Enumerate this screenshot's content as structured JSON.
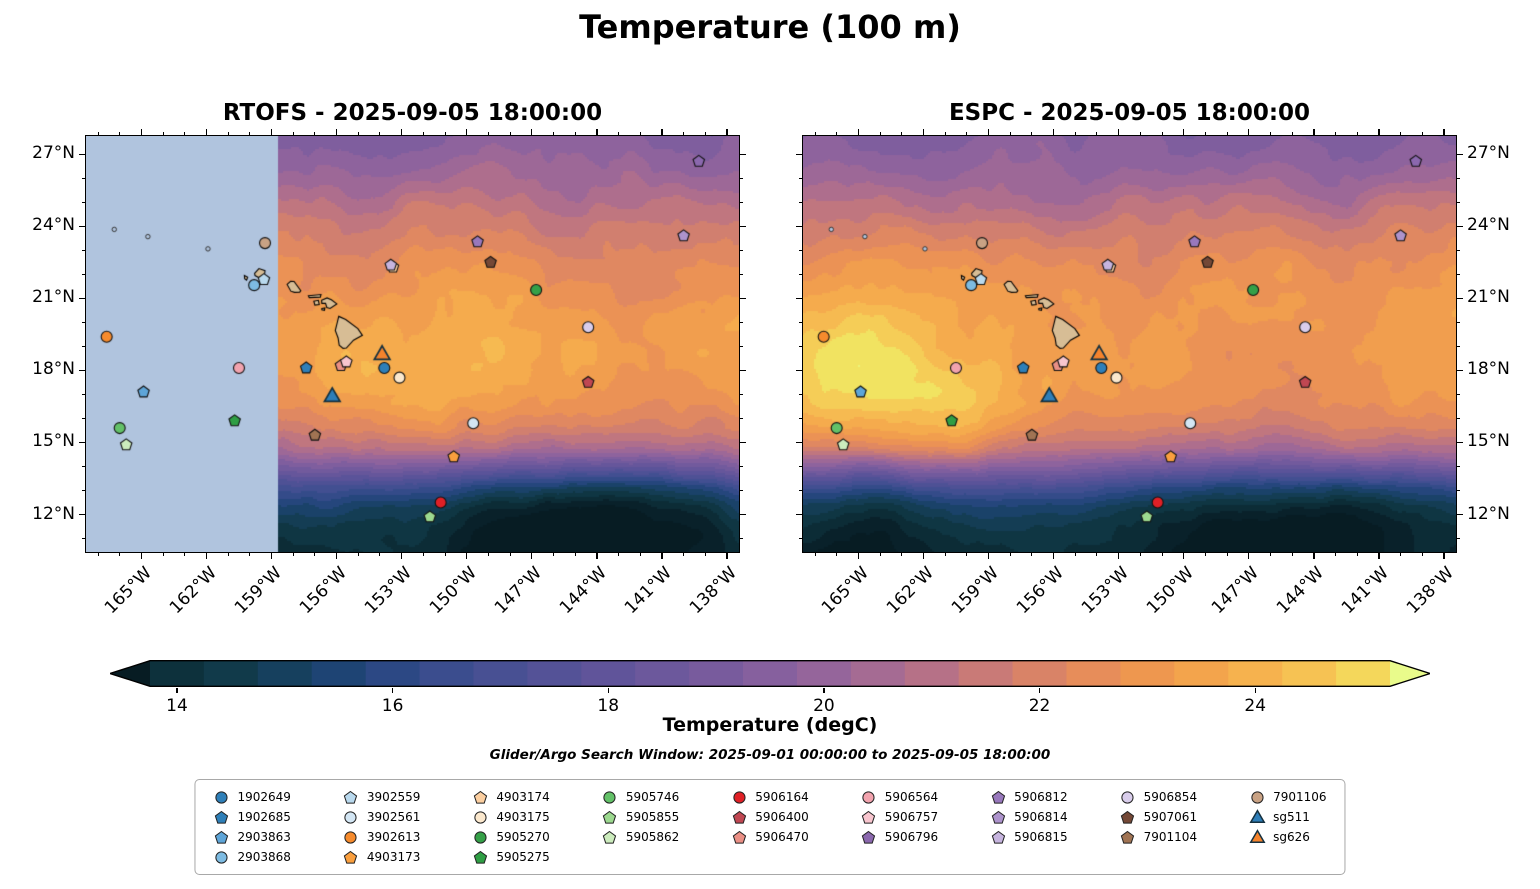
{
  "title": "Temperature (100 m)",
  "panels": [
    {
      "model": "RTOFS",
      "title": "RTOFS - 2025-09-05 18:00:00"
    },
    {
      "model": "ESPC",
      "title": "ESPC - 2025-09-05 18:00:00"
    }
  ],
  "colorbar": {
    "label": "Temperature (degC)",
    "tick_values": [
      14,
      16,
      18,
      20,
      22,
      24
    ],
    "tick_labels": [
      "14",
      "16",
      "18",
      "20",
      "22",
      "24"
    ],
    "vmin": 13.75,
    "vmax": 25.25
  },
  "search_window_note": "Glider/Argo Search Window: 2025-09-01 00:00:00 to 2025-09-05 18:00:00",
  "chart_data": {
    "type": "heatmap",
    "subtype": "filled-contour-geographic-temperature-field",
    "variable": "Temperature (degC) at 100 m",
    "valid_time": "2025-09-05 18:00:00",
    "models": [
      "RTOFS",
      "ESPC"
    ],
    "level_step": 0.5,
    "geo": {
      "lon_min": -167.6,
      "lon_max": -137.4,
      "lat_min": 10.4,
      "lat_max": 27.8,
      "x_tick_values": [
        -165,
        -162,
        -159,
        -156,
        -153,
        -150,
        -147,
        -144,
        -141,
        -138
      ],
      "x_tick_labels": [
        "165°W",
        "162°W",
        "159°W",
        "156°W",
        "153°W",
        "150°W",
        "147°W",
        "144°W",
        "141°W",
        "138°W"
      ],
      "y_tick_values": [
        12,
        15,
        18,
        21,
        24,
        27
      ],
      "y_tick_labels": [
        "12°N",
        "15°N",
        "18°N",
        "21°N",
        "24°N",
        "27°N"
      ]
    },
    "colormap_stops": [
      [
        13.0,
        "#071c23"
      ],
      [
        13.5,
        "#0a2630"
      ],
      [
        14.0,
        "#0d313c"
      ],
      [
        14.5,
        "#113a4a"
      ],
      [
        15.0,
        "#16405e"
      ],
      [
        15.5,
        "#1e4474"
      ],
      [
        16.0,
        "#2c4884"
      ],
      [
        16.5,
        "#3b4d8e"
      ],
      [
        17.0,
        "#485093"
      ],
      [
        17.5,
        "#545297"
      ],
      [
        18.0,
        "#60549a"
      ],
      [
        18.5,
        "#6c589c"
      ],
      [
        19.0,
        "#785b9d"
      ],
      [
        19.5,
        "#86609e"
      ],
      [
        20.0,
        "#95659b"
      ],
      [
        20.5,
        "#a56b93"
      ],
      [
        21.0,
        "#b67187"
      ],
      [
        21.5,
        "#c97a77"
      ],
      [
        22.0,
        "#d98367"
      ],
      [
        22.5,
        "#e78d5a"
      ],
      [
        23.0,
        "#ee974f"
      ],
      [
        23.5,
        "#f3a44c"
      ],
      [
        24.0,
        "#f6b24e"
      ],
      [
        24.5,
        "#f6c253"
      ],
      [
        25.0,
        "#f4d75b"
      ],
      [
        25.5,
        "#eeee67"
      ],
      [
        26.0,
        "#e9fb8b"
      ]
    ],
    "rtofs_mask": {
      "west_of": -158.7,
      "color": "#b0c4de"
    },
    "lat_temp_profile": [
      [
        10.4,
        14.1
      ],
      [
        11.6,
        14.6
      ],
      [
        12.4,
        15.3
      ],
      [
        13.1,
        16.6
      ],
      [
        13.9,
        18.8
      ],
      [
        14.7,
        20.8
      ],
      [
        15.6,
        21.9
      ],
      [
        16.6,
        22.6
      ],
      [
        18.0,
        23.0
      ],
      [
        19.5,
        23.1
      ],
      [
        21.0,
        22.9
      ],
      [
        22.5,
        22.45
      ],
      [
        24.0,
        21.7
      ],
      [
        25.5,
        20.6
      ],
      [
        26.8,
        19.9
      ],
      [
        27.8,
        19.5
      ]
    ],
    "anomalies": {
      "shared": [
        {
          "lon": -145.5,
          "lat": 11.2,
          "amp": -2.4,
          "slon": 4.5,
          "slat": 1.9
        },
        {
          "lon": -165.0,
          "lat": 10.8,
          "amp": -1.0,
          "slon": 4.0,
          "slat": 1.7
        }
      ],
      "ESPC": [
        {
          "lon": -165.5,
          "lat": 17.6,
          "amp": 2.2,
          "slon": 3.3,
          "slat": 2.1
        },
        {
          "lon": -160.3,
          "lat": 16.0,
          "amp": 1.6,
          "slon": 2.5,
          "slat": 1.6
        },
        {
          "lon": -153.5,
          "lat": 17.0,
          "amp": 0.6,
          "slon": 3.0,
          "slat": 2.0
        }
      ],
      "RTOFS": [
        {
          "lon": -154.0,
          "lat": 17.0,
          "amp": 0.7,
          "slon": 3.3,
          "slat": 2.2
        },
        {
          "lon": -149.5,
          "lat": 19.5,
          "amp": 0.4,
          "slon": 3.0,
          "slat": 2.0
        }
      ]
    },
    "islands": [
      {
        "name": "hawaii",
        "fill": "#d7bd95",
        "pts": [
          [
            -155.9,
            20.25
          ],
          [
            -155.58,
            20.12
          ],
          [
            -155.02,
            19.74
          ],
          [
            -154.81,
            19.46
          ],
          [
            -155.22,
            19.26
          ],
          [
            -155.55,
            18.93
          ],
          [
            -155.7,
            18.92
          ],
          [
            -155.88,
            19.05
          ],
          [
            -155.93,
            19.35
          ],
          [
            -156.06,
            19.66
          ],
          [
            -155.99,
            19.92
          ]
        ]
      },
      {
        "name": "maui",
        "fill": "#d7bd95",
        "pts": [
          [
            -156.69,
            20.92
          ],
          [
            -156.44,
            21.02
          ],
          [
            -156.24,
            20.94
          ],
          [
            -155.99,
            20.77
          ],
          [
            -156.3,
            20.58
          ],
          [
            -156.45,
            20.62
          ],
          [
            -156.51,
            20.79
          ],
          [
            -156.68,
            20.79
          ]
        ]
      },
      {
        "name": "kahoolawe",
        "fill": "#d7bd95",
        "pts": [
          [
            -156.68,
            20.58
          ],
          [
            -156.54,
            20.6
          ],
          [
            -156.56,
            20.5
          ],
          [
            -156.68,
            20.52
          ]
        ]
      },
      {
        "name": "lanai",
        "fill": "#d7bd95",
        "pts": [
          [
            -157.05,
            20.88
          ],
          [
            -156.84,
            20.92
          ],
          [
            -156.8,
            20.74
          ],
          [
            -157.0,
            20.72
          ]
        ]
      },
      {
        "name": "molokai",
        "fill": "#d7bd95",
        "pts": [
          [
            -157.3,
            21.11
          ],
          [
            -156.72,
            21.16
          ],
          [
            -156.75,
            21.05
          ],
          [
            -157.26,
            21.03
          ]
        ]
      },
      {
        "name": "oahu",
        "fill": "#d7bd95",
        "pts": [
          [
            -158.28,
            21.58
          ],
          [
            -158.12,
            21.71
          ],
          [
            -157.96,
            21.7
          ],
          [
            -157.65,
            21.32
          ],
          [
            -157.7,
            21.26
          ],
          [
            -157.94,
            21.25
          ],
          [
            -158.11,
            21.3
          ]
        ]
      },
      {
        "name": "kauai",
        "fill": "#d7bd95",
        "pts": [
          [
            -159.78,
            22.04
          ],
          [
            -159.58,
            22.24
          ],
          [
            -159.3,
            22.15
          ],
          [
            -159.33,
            21.92
          ],
          [
            -159.6,
            21.87
          ],
          [
            -159.76,
            21.95
          ]
        ]
      },
      {
        "name": "niihau",
        "fill": "#d7bd95",
        "pts": [
          [
            -160.25,
            21.95
          ],
          [
            -160.1,
            21.88
          ],
          [
            -160.15,
            21.76
          ],
          [
            -160.24,
            21.82
          ]
        ]
      }
    ],
    "islets": [
      [
        -166.25,
        23.87
      ],
      [
        -164.7,
        23.57
      ],
      [
        -161.93,
        23.06
      ]
    ],
    "platforms": [
      {
        "id": "1902649",
        "shape": "circle",
        "color": "#2e7fb8",
        "lon": -153.8,
        "lat": 18.1
      },
      {
        "id": "1902685",
        "shape": "pentagon",
        "color": "#2e7fb8",
        "lon": -157.4,
        "lat": 18.1
      },
      {
        "id": "2903863",
        "shape": "pentagon",
        "color": "#5ea5d8",
        "lon": -164.9,
        "lat": 17.1
      },
      {
        "id": "2903868",
        "shape": "circle",
        "color": "#7dbbe2",
        "lon": -159.8,
        "lat": 21.55
      },
      {
        "id": "3902559",
        "shape": "pentagon",
        "color": "#b9d9ee",
        "lon": -159.35,
        "lat": 21.78
      },
      {
        "id": "3902561",
        "shape": "circle",
        "color": "#d3e6f4",
        "lon": -149.7,
        "lat": 15.8
      },
      {
        "id": "3902613",
        "shape": "circle",
        "color": "#f68b2d",
        "lon": -166.6,
        "lat": 19.4
      },
      {
        "id": "4903173",
        "shape": "pentagon",
        "color": "#fa9f3e",
        "lon": -150.6,
        "lat": 14.4
      },
      {
        "id": "4903174",
        "shape": "pentagon",
        "color": "#fccfa0",
        "lon": -153.4,
        "lat": 22.3
      },
      {
        "id": "4903175",
        "shape": "circle",
        "color": "#fbe8cd",
        "lon": -153.1,
        "lat": 17.7
      },
      {
        "id": "5905270",
        "shape": "circle",
        "color": "#35a048",
        "lon": -146.8,
        "lat": 21.35
      },
      {
        "id": "5905275",
        "shape": "pentagon",
        "color": "#2f9e44",
        "lon": -160.7,
        "lat": 15.9
      },
      {
        "id": "5905746",
        "shape": "circle",
        "color": "#63c168",
        "lon": -166.0,
        "lat": 15.6
      },
      {
        "id": "5905855",
        "shape": "pentagon",
        "color": "#9cd98f",
        "lon": -151.7,
        "lat": 11.9
      },
      {
        "id": "5905862",
        "shape": "pentagon",
        "color": "#ccecbd",
        "lon": -165.7,
        "lat": 14.9
      },
      {
        "id": "5906164",
        "shape": "circle",
        "color": "#e02026",
        "lon": -151.2,
        "lat": 12.5
      },
      {
        "id": "5906400",
        "shape": "pentagon",
        "color": "#c04752",
        "lon": -144.4,
        "lat": 17.5
      },
      {
        "id": "5906470",
        "shape": "pentagon",
        "color": "#ea8f85",
        "lon": -155.8,
        "lat": 18.2
      },
      {
        "id": "5906564",
        "shape": "circle",
        "color": "#f2a3ae",
        "lon": -160.5,
        "lat": 18.1
      },
      {
        "id": "5906757",
        "shape": "pentagon",
        "color": "#f8c5ce",
        "lon": -155.55,
        "lat": 18.35
      },
      {
        "id": "5906796",
        "shape": "pentagon",
        "color": "#8b68ae",
        "lon": -139.3,
        "lat": 26.7
      },
      {
        "id": "5906812",
        "shape": "pentagon",
        "color": "#9878bc",
        "lon": -149.5,
        "lat": 23.35
      },
      {
        "id": "5906814",
        "shape": "pentagon",
        "color": "#ad93cc",
        "lon": -140.0,
        "lat": 23.6
      },
      {
        "id": "5906815",
        "shape": "pentagon",
        "color": "#c6b4de",
        "lon": -153.5,
        "lat": 22.38
      },
      {
        "id": "5906854",
        "shape": "circle",
        "color": "#d9cdeb",
        "lon": -144.4,
        "lat": 19.8
      },
      {
        "id": "5907061",
        "shape": "pentagon",
        "color": "#744836",
        "lon": -148.9,
        "lat": 22.5
      },
      {
        "id": "7901104",
        "shape": "pentagon",
        "color": "#a07353",
        "lon": -157.0,
        "lat": 15.3
      },
      {
        "id": "7901106",
        "shape": "circle",
        "color": "#c9a284",
        "lon": -159.3,
        "lat": 23.3
      },
      {
        "id": "sg511",
        "shape": "triangle",
        "color": "#2e7eb8",
        "lon": -156.2,
        "lat": 16.9
      },
      {
        "id": "sg626",
        "shape": "triangle",
        "color": "#f5832c",
        "lon": -153.9,
        "lat": 18.65
      }
    ]
  }
}
